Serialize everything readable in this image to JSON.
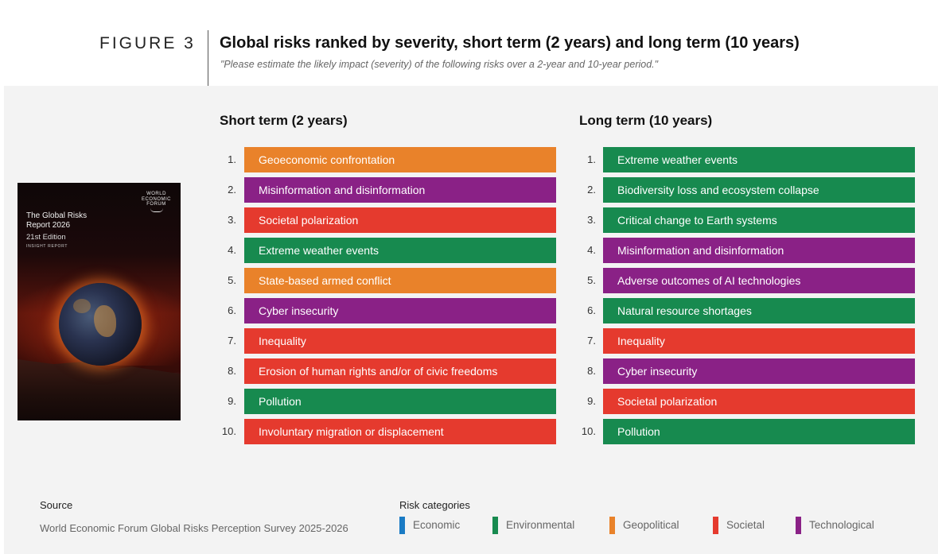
{
  "figure": {
    "label": "FIGURE 3",
    "title": "Global risks ranked by severity, short term (2 years) and long term (10 years)",
    "subtitle": "\"Please estimate the likely impact (severity) of the following risks over a 2-year and 10-year period.\""
  },
  "cover": {
    "logo_lines": [
      "WORLD",
      "ECONOMIC",
      "FORUM"
    ],
    "title_line1": "The Global Risks",
    "title_line2": "Report 2026",
    "edition": "21st Edition",
    "kind": "INSIGHT REPORT"
  },
  "colors": {
    "Economic": "#1a7bc4",
    "Environmental": "#178a4f",
    "Geopolitical": "#e9822a",
    "Societal": "#e53a2e",
    "Technological": "#8a2186"
  },
  "short_term": {
    "heading": "Short term (2 years)",
    "items": [
      {
        "rank": "1.",
        "label": "Geoeconomic confrontation",
        "category": "Geopolitical"
      },
      {
        "rank": "2.",
        "label": "Misinformation and disinformation",
        "category": "Technological"
      },
      {
        "rank": "3.",
        "label": "Societal polarization",
        "category": "Societal"
      },
      {
        "rank": "4.",
        "label": "Extreme weather events",
        "category": "Environmental"
      },
      {
        "rank": "5.",
        "label": "State-based armed conflict",
        "category": "Geopolitical"
      },
      {
        "rank": "6.",
        "label": "Cyber insecurity",
        "category": "Technological"
      },
      {
        "rank": "7.",
        "label": "Inequality",
        "category": "Societal"
      },
      {
        "rank": "8.",
        "label": "Erosion of human rights and/or of civic freedoms",
        "category": "Societal"
      },
      {
        "rank": "9.",
        "label": "Pollution",
        "category": "Environmental"
      },
      {
        "rank": "10.",
        "label": "Involuntary migration or displacement",
        "category": "Societal"
      }
    ]
  },
  "long_term": {
    "heading": "Long term (10 years)",
    "items": [
      {
        "rank": "1.",
        "label": "Extreme weather events",
        "category": "Environmental"
      },
      {
        "rank": "2.",
        "label": "Biodiversity loss and ecosystem collapse",
        "category": "Environmental"
      },
      {
        "rank": "3.",
        "label": "Critical change to Earth systems",
        "category": "Environmental"
      },
      {
        "rank": "4.",
        "label": "Misinformation and disinformation",
        "category": "Technological"
      },
      {
        "rank": "5.",
        "label": "Adverse outcomes of AI technologies",
        "category": "Technological"
      },
      {
        "rank": "6.",
        "label": "Natural resource shortages",
        "category": "Environmental"
      },
      {
        "rank": "7.",
        "label": "Inequality",
        "category": "Societal"
      },
      {
        "rank": "8.",
        "label": "Cyber insecurity",
        "category": "Technological"
      },
      {
        "rank": "9.",
        "label": "Societal polarization",
        "category": "Societal"
      },
      {
        "rank": "10.",
        "label": "Pollution",
        "category": "Environmental"
      }
    ]
  },
  "source": {
    "label": "Source",
    "text": "World Economic Forum Global Risks Perception Survey 2025-2026"
  },
  "legend": {
    "label": "Risk categories",
    "items": [
      {
        "name": "Economic"
      },
      {
        "name": "Environmental"
      },
      {
        "name": "Geopolitical"
      },
      {
        "name": "Societal"
      },
      {
        "name": "Technological"
      }
    ]
  }
}
